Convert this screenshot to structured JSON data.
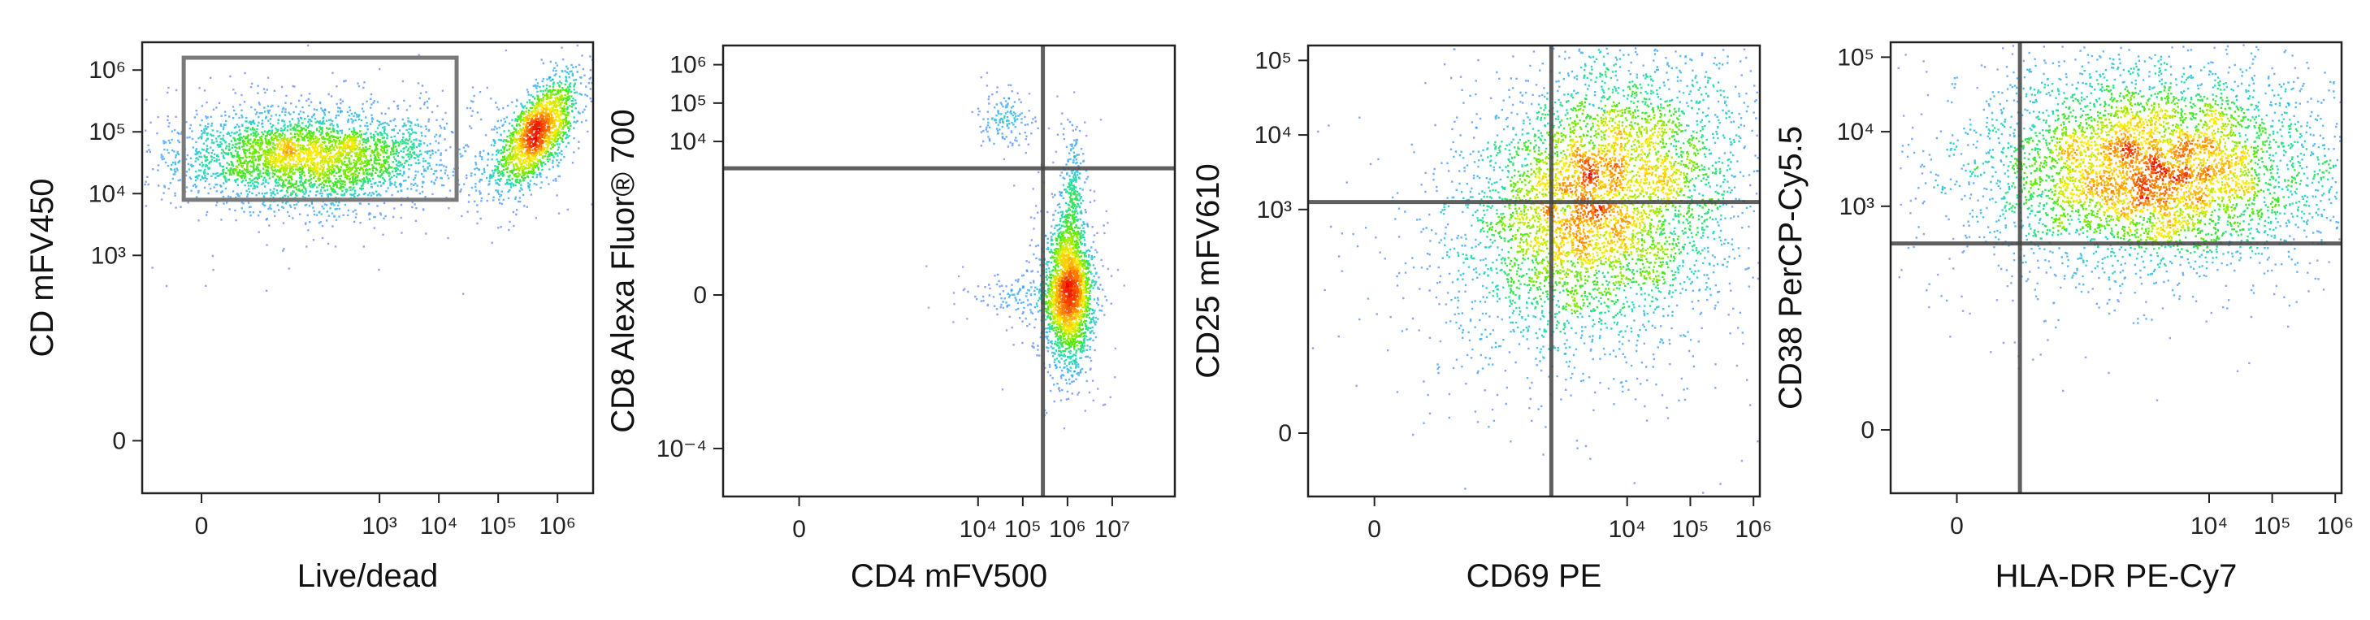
{
  "chart_data": [
    {
      "type": "scatter",
      "xlabel": "Live/dead",
      "ylabel": "CD mFV450",
      "x_ticks": [
        {
          "v": 0,
          "t": "0"
        },
        {
          "v": 3,
          "t": "10³"
        },
        {
          "v": 4,
          "t": "10⁴"
        },
        {
          "v": 5,
          "t": "10⁵"
        },
        {
          "v": 6,
          "t": "10⁶"
        }
      ],
      "y_ticks": [
        {
          "v": 0,
          "t": "0"
        },
        {
          "v": 3,
          "t": "10³"
        },
        {
          "v": 4,
          "t": "10⁴"
        },
        {
          "v": 5,
          "t": "10⁵"
        },
        {
          "v": 6,
          "t": "10⁶"
        }
      ],
      "xlim": [
        -1.0,
        6.6
      ],
      "ylim": [
        -0.85,
        6.45
      ],
      "gate": {
        "x": [
          -0.3,
          4.3
        ],
        "y": [
          3.9,
          6.2
        ]
      },
      "populations": [
        {
          "cx": 1.8,
          "cy": 4.6,
          "sx": 1.1,
          "sy": 0.38,
          "n": 3400
        },
        {
          "cx": 5.65,
          "cy": 5.0,
          "sx": 0.35,
          "sy": 0.45,
          "n": 1700,
          "rho": 0.65
        }
      ]
    },
    {
      "type": "scatter",
      "xlabel": "CD4 mFV500",
      "ylabel": "CD8 Alexa Fluor® 700",
      "x_ticks": [
        {
          "v": 0,
          "t": "0"
        },
        {
          "v": 4,
          "t": "10⁴"
        },
        {
          "v": 5,
          "t": "10⁵"
        },
        {
          "v": 6,
          "t": "10⁶"
        },
        {
          "v": 7,
          "t": "10⁷"
        }
      ],
      "y_ticks": [
        {
          "v": -4,
          "t": "10⁻⁴"
        },
        {
          "v": 0,
          "t": "0"
        },
        {
          "v": 4,
          "t": "10⁴"
        },
        {
          "v": 5,
          "t": "10⁵"
        },
        {
          "v": 6,
          "t": "10⁶"
        }
      ],
      "xlim": [
        -1.7,
        8.4
      ],
      "ylim": [
        -5.25,
        6.5
      ],
      "quadrant": {
        "x": 5.45,
        "y": 3.3
      },
      "populations": [
        {
          "cx": 6.0,
          "cy": 0.1,
          "sx": 0.25,
          "sy": 0.9,
          "n": 2300
        },
        {
          "cx": 6.1,
          "cy": 2.6,
          "sx": 0.12,
          "sy": 0.8,
          "n": 260
        },
        {
          "cx": 4.6,
          "cy": 4.6,
          "sx": 0.32,
          "sy": 0.35,
          "n": 150
        },
        {
          "cx": 5.1,
          "cy": 0.0,
          "sx": 0.65,
          "sy": 0.3,
          "n": 160
        }
      ]
    },
    {
      "type": "scatter",
      "xlabel": "CD69 PE",
      "ylabel": "CD25 mFV610",
      "x_ticks": [
        {
          "v": 0,
          "t": "0"
        },
        {
          "v": 4,
          "t": "10⁴"
        },
        {
          "v": 5,
          "t": "10⁵"
        },
        {
          "v": 6,
          "t": "10⁶"
        }
      ],
      "y_ticks": [
        {
          "v": 0,
          "t": "0"
        },
        {
          "v": 3,
          "t": "10³"
        },
        {
          "v": 4,
          "t": "10⁴"
        },
        {
          "v": 5,
          "t": "10⁵"
        }
      ],
      "xlim": [
        -1.05,
        6.1
      ],
      "ylim": [
        -0.85,
        5.2
      ],
      "quadrant": {
        "x": 2.8,
        "y": 3.1
      },
      "populations": [
        {
          "cx": 3.55,
          "cy": 3.15,
          "sx": 1.1,
          "sy": 0.95,
          "n": 5200,
          "rho": 0.25
        }
      ]
    },
    {
      "type": "scatter",
      "xlabel": "HLA-DR PE-Cy7",
      "ylabel": "CD38 PerCP-Cy5.5",
      "x_ticks": [
        {
          "v": 0,
          "t": "0"
        },
        {
          "v": 4,
          "t": "10⁴"
        },
        {
          "v": 5,
          "t": "10⁵"
        },
        {
          "v": 6,
          "t": "10⁶"
        }
      ],
      "y_ticks": [
        {
          "v": 0,
          "t": "0"
        },
        {
          "v": 3,
          "t": "10³"
        },
        {
          "v": 4,
          "t": "10⁴"
        },
        {
          "v": 5,
          "t": "10⁵"
        }
      ],
      "xlim": [
        -1.05,
        6.1
      ],
      "ylim": [
        -0.85,
        5.2
      ],
      "quadrant": {
        "x": 1.0,
        "y": 2.5
      },
      "populations": [
        {
          "cx": 3.1,
          "cy": 3.5,
          "sx": 1.35,
          "sy": 0.65,
          "n": 5400
        }
      ]
    }
  ]
}
